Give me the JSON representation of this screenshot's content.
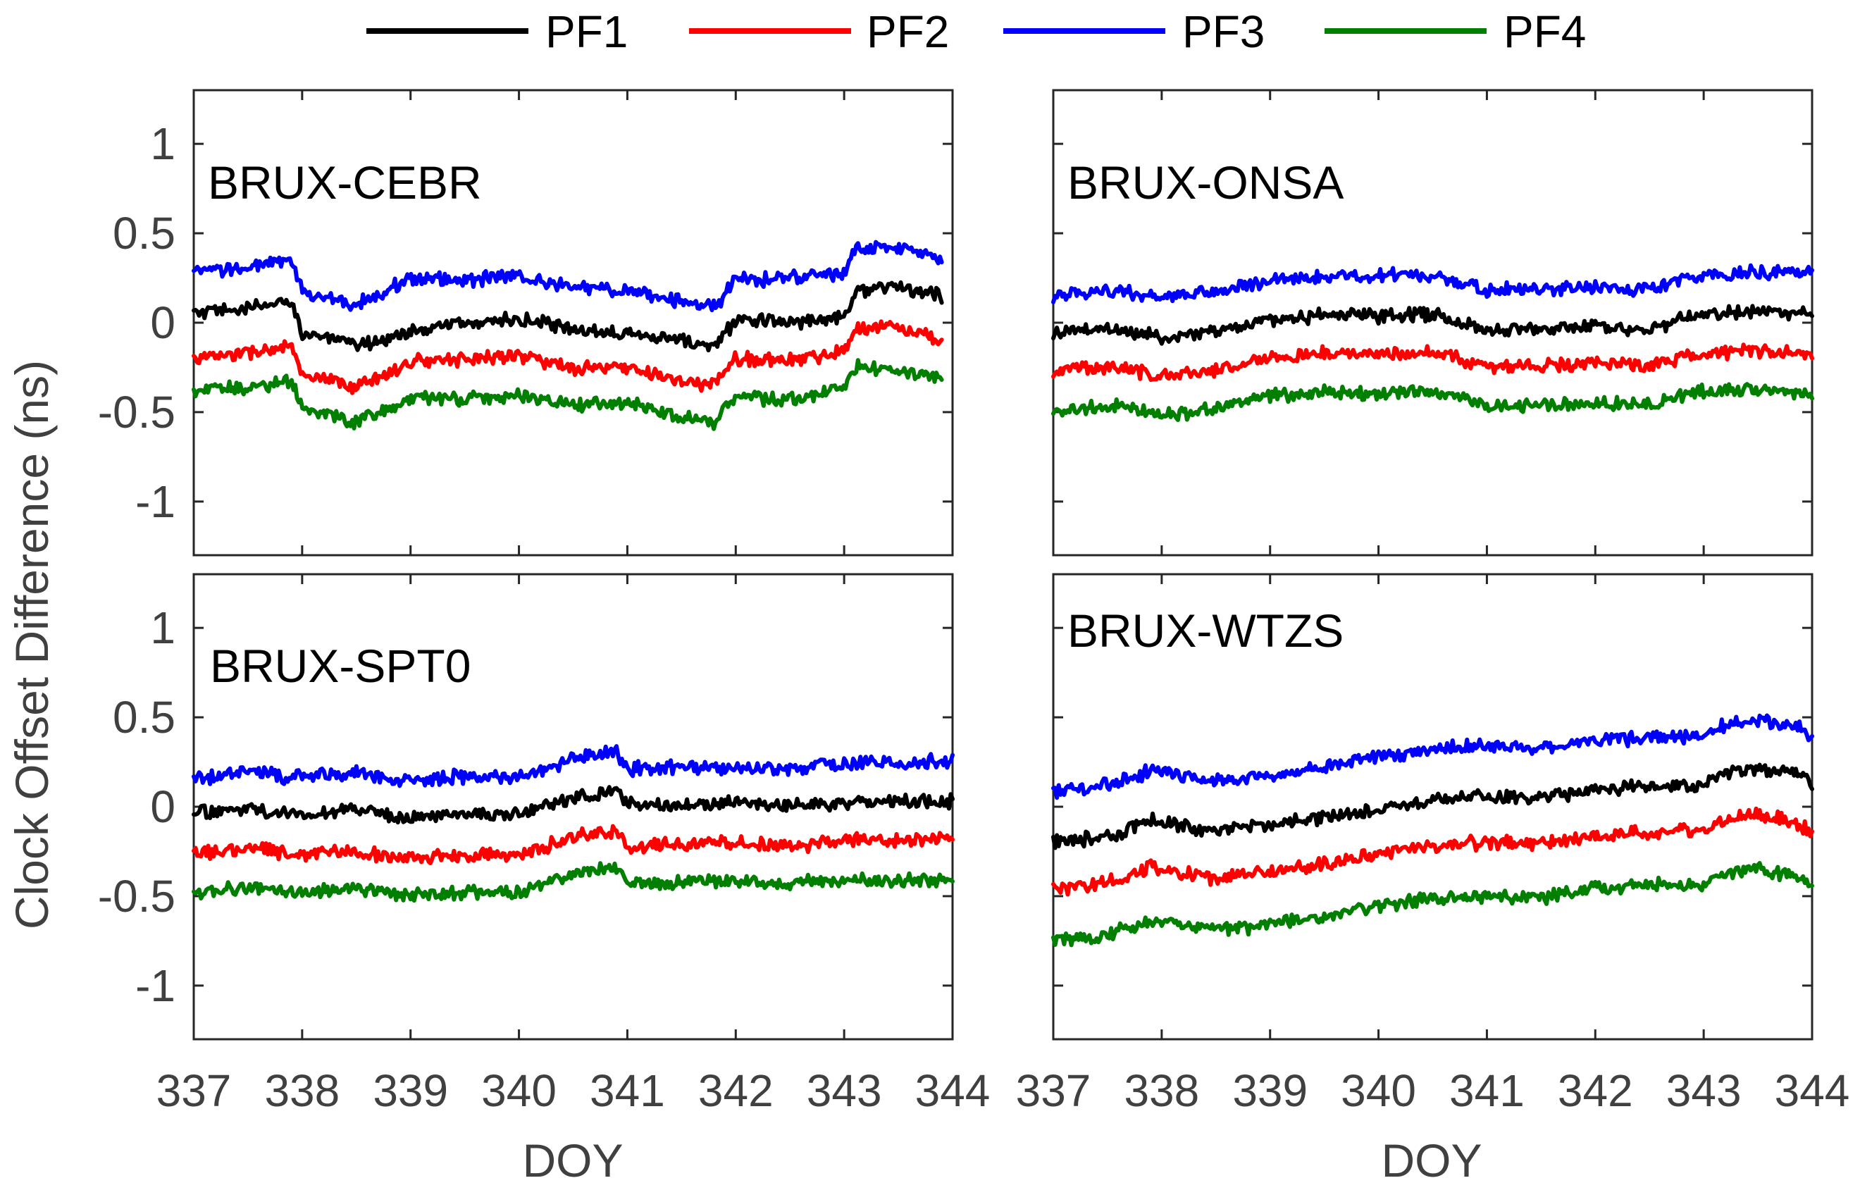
{
  "chart_data": [
    {
      "type": "line",
      "title": "BRUX-CEBR",
      "xlabel": "DOY",
      "ylabel": "Clock Offset Difference (ns)",
      "xlim": [
        337,
        344
      ],
      "ylim": [
        -1.3,
        1.3
      ],
      "xticks": [
        337,
        338,
        339,
        340,
        341,
        342,
        343,
        344
      ],
      "yticks": [
        -1,
        -0.5,
        0,
        0.5,
        1
      ],
      "ytick_labels": [
        "-1",
        "-0.5",
        "0",
        "0.5",
        "1"
      ],
      "x": [
        337.0,
        337.5,
        337.9,
        338.0,
        338.5,
        339.0,
        339.5,
        340.0,
        340.5,
        341.0,
        341.5,
        341.8,
        342.0,
        342.5,
        343.0,
        343.1,
        343.5,
        343.9
      ],
      "series": [
        {
          "name": "PF1",
          "values": [
            0.05,
            0.08,
            0.12,
            -0.05,
            -0.13,
            -0.05,
            0.0,
            0.02,
            -0.04,
            -0.05,
            -0.1,
            -0.14,
            0.02,
            0.0,
            0.04,
            0.18,
            0.2,
            0.15
          ]
        },
        {
          "name": "PF2",
          "values": [
            -0.2,
            -0.17,
            -0.13,
            -0.3,
            -0.36,
            -0.22,
            -0.2,
            -0.18,
            -0.26,
            -0.25,
            -0.33,
            -0.35,
            -0.2,
            -0.21,
            -0.16,
            -0.03,
            -0.02,
            -0.1
          ]
        },
        {
          "name": "PF3",
          "values": [
            0.28,
            0.31,
            0.35,
            0.17,
            0.1,
            0.25,
            0.24,
            0.26,
            0.2,
            0.18,
            0.12,
            0.08,
            0.24,
            0.25,
            0.28,
            0.41,
            0.42,
            0.35
          ]
        },
        {
          "name": "PF4",
          "values": [
            -0.38,
            -0.36,
            -0.32,
            -0.48,
            -0.56,
            -0.42,
            -0.43,
            -0.4,
            -0.46,
            -0.45,
            -0.52,
            -0.56,
            -0.41,
            -0.43,
            -0.37,
            -0.25,
            -0.26,
            -0.32
          ]
        }
      ]
    },
    {
      "type": "line",
      "title": "BRUX-ONSA",
      "xlabel": "DOY",
      "ylabel": "",
      "xlim": [
        337,
        344
      ],
      "ylim": [
        -1.3,
        1.3
      ],
      "xticks": [
        337,
        338,
        339,
        340,
        341,
        342,
        343,
        344
      ],
      "yticks": [
        -1,
        -0.5,
        0,
        0.5,
        1
      ],
      "x": [
        337.0,
        337.5,
        338.0,
        338.5,
        339.0,
        339.5,
        340.0,
        340.5,
        341.0,
        341.5,
        342.0,
        342.5,
        343.0,
        343.5,
        344.0
      ],
      "series": [
        {
          "name": "PF1",
          "values": [
            -0.06,
            -0.03,
            -0.08,
            -0.05,
            0.02,
            0.04,
            0.04,
            0.05,
            -0.04,
            -0.03,
            -0.02,
            -0.03,
            0.05,
            0.06,
            0.05
          ]
        },
        {
          "name": "PF2",
          "values": [
            -0.27,
            -0.24,
            -0.3,
            -0.26,
            -0.2,
            -0.17,
            -0.17,
            -0.16,
            -0.25,
            -0.24,
            -0.23,
            -0.24,
            -0.17,
            -0.16,
            -0.17
          ]
        },
        {
          "name": "PF3",
          "values": [
            0.15,
            0.18,
            0.14,
            0.17,
            0.24,
            0.26,
            0.26,
            0.27,
            0.18,
            0.19,
            0.2,
            0.19,
            0.27,
            0.28,
            0.28
          ]
        },
        {
          "name": "PF4",
          "values": [
            -0.5,
            -0.46,
            -0.52,
            -0.48,
            -0.41,
            -0.39,
            -0.4,
            -0.38,
            -0.47,
            -0.46,
            -0.45,
            -0.46,
            -0.38,
            -0.37,
            -0.39
          ]
        }
      ]
    },
    {
      "type": "line",
      "title": "BRUX-SPT0",
      "xlabel": "DOY",
      "ylabel": "Clock Offset Difference (ns)",
      "xlim": [
        337,
        344
      ],
      "ylim": [
        -1.3,
        1.3
      ],
      "xticks": [
        337,
        338,
        339,
        340,
        341,
        342,
        343,
        344
      ],
      "xtick_labels": [
        "337",
        "338",
        "339",
        "340",
        "341",
        "342",
        "343",
        "344"
      ],
      "yticks": [
        -1,
        -0.5,
        0,
        0.5,
        1
      ],
      "ytick_labels": [
        "-1",
        "-0.5",
        "0",
        "0.5",
        "1"
      ],
      "x": [
        337.0,
        337.5,
        338.0,
        338.5,
        339.0,
        339.5,
        340.0,
        340.5,
        340.9,
        341.0,
        341.5,
        342.0,
        342.5,
        343.0,
        343.5,
        344.0
      ],
      "series": [
        {
          "name": "PF1",
          "values": [
            -0.03,
            -0.01,
            -0.05,
            -0.02,
            -0.06,
            -0.04,
            -0.04,
            0.05,
            0.08,
            0.01,
            0.01,
            0.02,
            0.0,
            0.02,
            0.03,
            0.03
          ]
        },
        {
          "name": "PF2",
          "values": [
            -0.26,
            -0.23,
            -0.27,
            -0.25,
            -0.29,
            -0.27,
            -0.27,
            -0.17,
            -0.13,
            -0.22,
            -0.21,
            -0.2,
            -0.22,
            -0.19,
            -0.18,
            -0.18
          ]
        },
        {
          "name": "PF3",
          "values": [
            0.16,
            0.19,
            0.16,
            0.19,
            0.15,
            0.17,
            0.17,
            0.27,
            0.31,
            0.21,
            0.22,
            0.22,
            0.21,
            0.24,
            0.25,
            0.25
          ]
        },
        {
          "name": "PF4",
          "values": [
            -0.48,
            -0.45,
            -0.48,
            -0.46,
            -0.5,
            -0.48,
            -0.48,
            -0.38,
            -0.34,
            -0.43,
            -0.42,
            -0.41,
            -0.43,
            -0.41,
            -0.41,
            -0.41
          ]
        }
      ]
    },
    {
      "type": "line",
      "title": "BRUX-WTZS",
      "xlabel": "DOY",
      "ylabel": "",
      "xlim": [
        337,
        344
      ],
      "ylim": [
        -1.3,
        1.3
      ],
      "xticks": [
        337,
        338,
        339,
        340,
        341,
        342,
        343,
        344
      ],
      "xtick_labels": [
        "337",
        "338",
        "339",
        "340",
        "341",
        "342",
        "343",
        "344"
      ],
      "yticks": [
        -1,
        -0.5,
        0,
        0.5,
        1
      ],
      "x": [
        337.0,
        337.5,
        337.9,
        338.5,
        339.0,
        339.5,
        340.0,
        340.5,
        341.0,
        341.5,
        342.0,
        342.5,
        343.0,
        343.2,
        343.5,
        343.9,
        344.0
      ],
      "series": [
        {
          "name": "PF1",
          "values": [
            -0.2,
            -0.17,
            -0.08,
            -0.14,
            -0.1,
            -0.06,
            -0.01,
            0.04,
            0.06,
            0.05,
            0.1,
            0.12,
            0.12,
            0.2,
            0.22,
            0.18,
            0.12
          ]
        },
        {
          "name": "PF2",
          "values": [
            -0.46,
            -0.42,
            -0.34,
            -0.4,
            -0.36,
            -0.32,
            -0.26,
            -0.22,
            -0.2,
            -0.21,
            -0.16,
            -0.14,
            -0.13,
            -0.07,
            -0.04,
            -0.1,
            -0.16
          ]
        },
        {
          "name": "PF3",
          "values": [
            0.08,
            0.12,
            0.2,
            0.14,
            0.18,
            0.22,
            0.28,
            0.32,
            0.34,
            0.33,
            0.37,
            0.39,
            0.4,
            0.46,
            0.48,
            0.45,
            0.39
          ]
        },
        {
          "name": "PF4",
          "values": [
            -0.75,
            -0.71,
            -0.63,
            -0.69,
            -0.66,
            -0.61,
            -0.55,
            -0.51,
            -0.5,
            -0.51,
            -0.46,
            -0.44,
            -0.43,
            -0.37,
            -0.35,
            -0.4,
            -0.46
          ]
        }
      ]
    }
  ],
  "legend": {
    "placement": "top",
    "entries": [
      {
        "label": "PF1",
        "color": "#000000"
      },
      {
        "label": "PF2",
        "color": "#ff0000"
      },
      {
        "label": "PF3",
        "color": "#0000ff"
      },
      {
        "label": "PF4",
        "color": "#007f00"
      }
    ]
  },
  "series_colors": {
    "PF1": "#000000",
    "PF2": "#ff0000",
    "PF3": "#0000ff",
    "PF4": "#007f00"
  },
  "shared_ylabel": "Clock Offset Difference (ns)",
  "xlabel_left": "DOY",
  "xlabel_right": "DOY"
}
